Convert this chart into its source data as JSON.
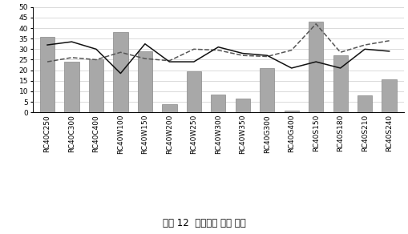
{
  "categories": [
    "RC40C250",
    "RC40C300",
    "RC40C400",
    "RC40W100",
    "RC40W150",
    "RC40W200",
    "RC40W250",
    "RC40W300",
    "RC40W350",
    "RC40G300",
    "RC40G400",
    "RC40S150",
    "RC40S180",
    "RC40S210",
    "RC40S240"
  ],
  "error_ratio": [
    36,
    24,
    25,
    38,
    29,
    4,
    19.5,
    8.5,
    6.5,
    21,
    1,
    43,
    27,
    8,
    15.5
  ],
  "estimation": [
    24,
    26,
    25,
    28.5,
    25.5,
    24.5,
    30,
    29.5,
    27,
    26.5,
    29.5,
    42,
    28.5,
    32,
    34
  ],
  "core_test": [
    32,
    33.5,
    30,
    18.5,
    32.5,
    24,
    24,
    31,
    28,
    27,
    21,
    24,
    21,
    30,
    29
  ],
  "ylim": [
    0,
    50
  ],
  "yticks": [
    0,
    5,
    10,
    15,
    20,
    25,
    30,
    35,
    40,
    45,
    50
  ],
  "bar_color": "#a8a8a8",
  "estimation_color": "#555555",
  "core_test_color": "#111111",
  "title": "그림 12  압축강도 추정 결과",
  "title_fontsize": 8.5,
  "tick_fontsize": 6.5,
  "legend_fontsize": 7.5,
  "ylabel_ticks": [
    "0",
    "5",
    "10",
    "15",
    "20",
    "25",
    "30",
    "35",
    "40",
    "45",
    "50"
  ]
}
